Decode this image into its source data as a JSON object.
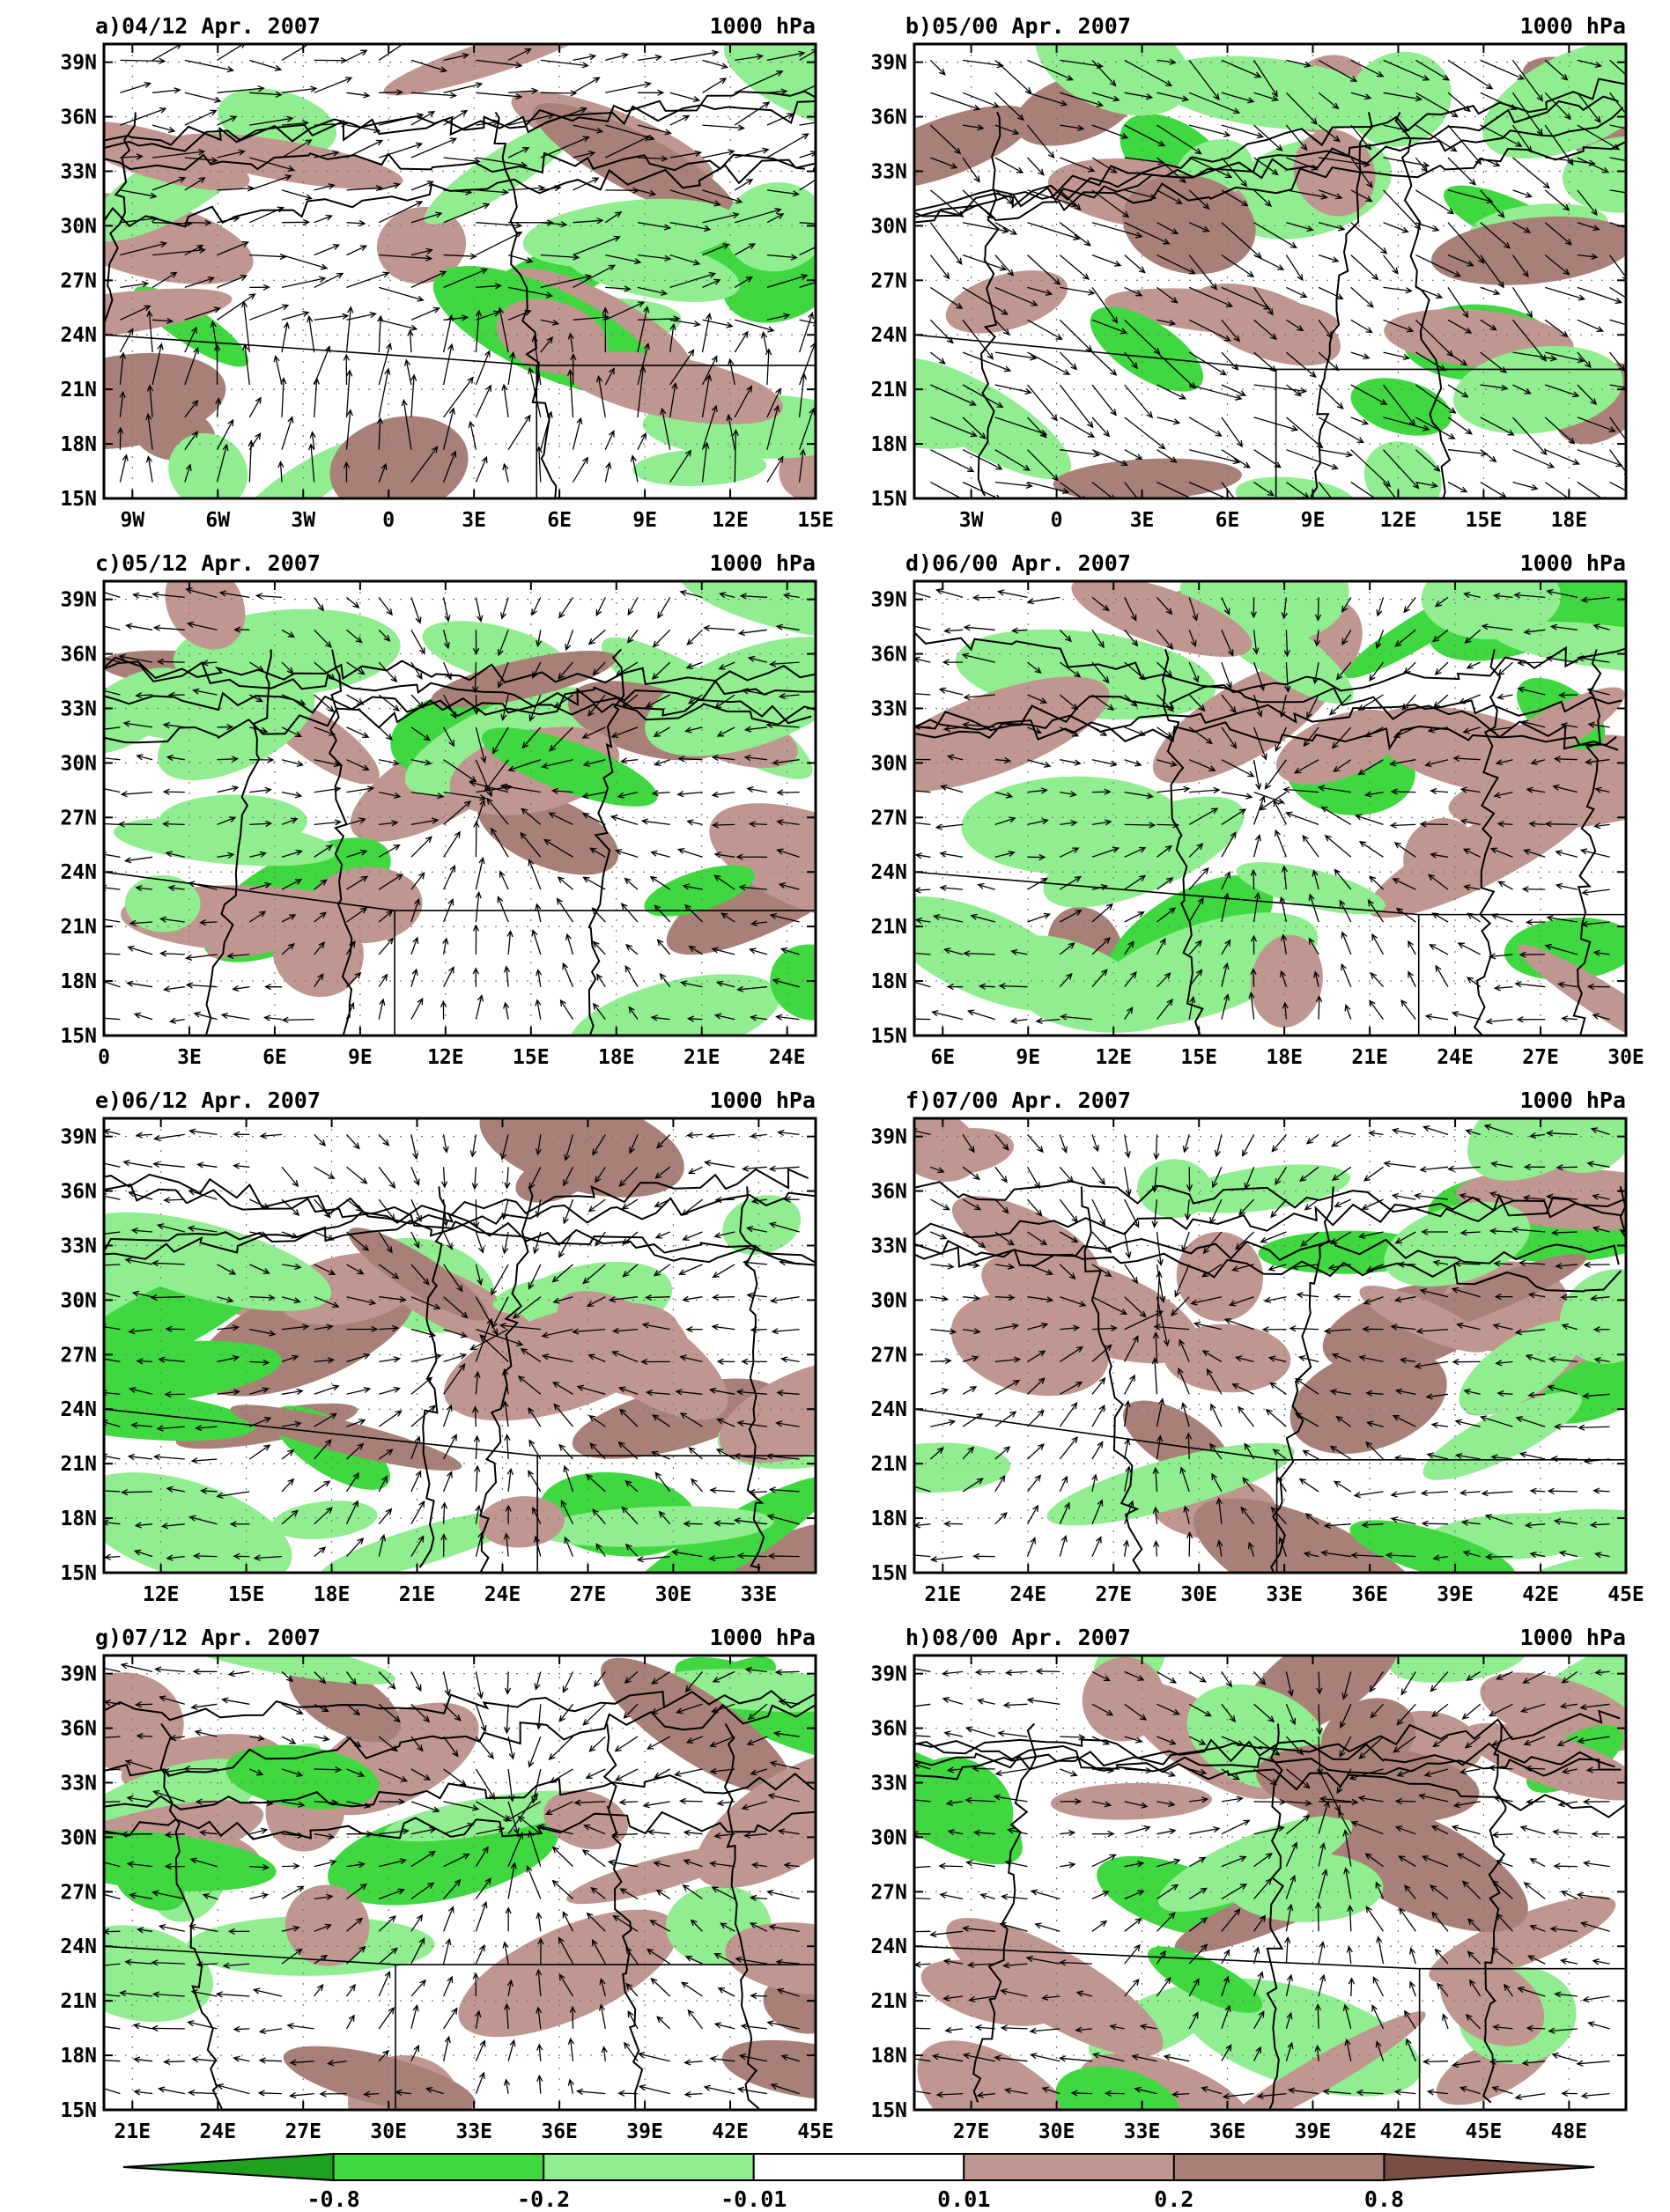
{
  "colors": {
    "ocean_frame": "#ffffff",
    "neg_strong": "#1fa01f",
    "neg_mid": "#40d840",
    "neg_weak": "#90ee90",
    "neutral": "#ffffff",
    "pos_weak": "#c09690",
    "pos_mid": "#a88078",
    "pos_strong": "#7a4e45",
    "arrow": "#000000"
  },
  "panels": [
    {
      "id": "a",
      "title": "a)04/12 Apr. 2007",
      "level": "1000 hPa",
      "lat_labels": [
        "39N",
        "36N",
        "33N",
        "30N",
        "27N",
        "24N",
        "21N",
        "18N",
        "15N"
      ],
      "lon_labels": [
        "9W",
        "6W",
        "3W",
        "0",
        "3E",
        "6E",
        "9E",
        "12E",
        "15E"
      ],
      "lon_range": [
        -10,
        15
      ],
      "wind_pattern": "southwesterly"
    },
    {
      "id": "b",
      "title": "b)05/00 Apr. 2007",
      "level": "1000 hPa",
      "lat_labels": [
        "39N",
        "36N",
        "33N",
        "30N",
        "27N",
        "24N",
        "21N",
        "18N",
        "15N"
      ],
      "lon_labels": [
        "3W",
        "0",
        "3E",
        "6E",
        "9E",
        "12E",
        "15E",
        "18E"
      ],
      "lon_range": [
        -5,
        20
      ],
      "wind_pattern": "northwesterly"
    },
    {
      "id": "c",
      "title": "c)05/12 Apr. 2007",
      "level": "1000 hPa",
      "lat_labels": [
        "39N",
        "36N",
        "33N",
        "30N",
        "27N",
        "24N",
        "21N",
        "18N",
        "15N"
      ],
      "lon_labels": [
        "0",
        "3E",
        "6E",
        "9E",
        "12E",
        "15E",
        "18E",
        "21E",
        "24E"
      ],
      "lon_range": [
        0,
        25
      ],
      "wind_pattern": "convergence",
      "center": [
        13.5,
        28.5
      ]
    },
    {
      "id": "d",
      "title": "d)06/00 Apr. 2007",
      "level": "1000 hPa",
      "lat_labels": [
        "39N",
        "36N",
        "33N",
        "30N",
        "27N",
        "24N",
        "21N",
        "18N",
        "15N"
      ],
      "lon_labels": [
        "6E",
        "9E",
        "12E",
        "15E",
        "18E",
        "21E",
        "24E",
        "27E",
        "30E"
      ],
      "lon_range": [
        5,
        30
      ],
      "wind_pattern": "convergence",
      "center": [
        17.5,
        28
      ]
    },
    {
      "id": "e",
      "title": "e)06/12 Apr. 2007",
      "level": "1000 hPa",
      "lat_labels": [
        "39N",
        "36N",
        "33N",
        "30N",
        "27N",
        "24N",
        "21N",
        "18N",
        "15N"
      ],
      "lon_labels": [
        "12E",
        "15E",
        "18E",
        "21E",
        "24E",
        "27E",
        "30E",
        "33E"
      ],
      "lon_range": [
        10,
        35
      ],
      "wind_pattern": "convergence",
      "center": [
        23.5,
        28
      ]
    },
    {
      "id": "f",
      "title": "f)07/00 Apr. 2007",
      "level": "1000 hPa",
      "lat_labels": [
        "39N",
        "36N",
        "33N",
        "30N",
        "27N",
        "24N",
        "21N",
        "18N",
        "15N"
      ],
      "lon_labels": [
        "21E",
        "24E",
        "27E",
        "30E",
        "33E",
        "36E",
        "39E",
        "42E",
        "45E"
      ],
      "lon_range": [
        20,
        45
      ],
      "wind_pattern": "convergence",
      "center": [
        28.5,
        29
      ]
    },
    {
      "id": "g",
      "title": "g)07/12 Apr. 2007",
      "level": "1000 hPa",
      "lat_labels": [
        "39N",
        "36N",
        "33N",
        "30N",
        "27N",
        "24N",
        "21N",
        "18N",
        "15N"
      ],
      "lon_labels": [
        "21E",
        "24E",
        "27E",
        "30E",
        "33E",
        "36E",
        "39E",
        "42E",
        "45E"
      ],
      "lon_range": [
        20,
        45
      ],
      "wind_pattern": "convergence",
      "center": [
        34.5,
        31
      ]
    },
    {
      "id": "h",
      "title": "h)08/00 Apr. 2007",
      "level": "1000 hPa",
      "lat_labels": [
        "39N",
        "36N",
        "33N",
        "30N",
        "27N",
        "24N",
        "21N",
        "18N",
        "15N"
      ],
      "lon_labels": [
        "27E",
        "30E",
        "33E",
        "36E",
        "39E",
        "42E",
        "45E",
        "48E"
      ],
      "lon_range": [
        25,
        50
      ],
      "wind_pattern": "convergence",
      "center": [
        39.5,
        32
      ]
    }
  ],
  "colorbar": {
    "labels": [
      "-0.8",
      "-0.2",
      "-0.01",
      "0.01",
      "0.2",
      "0.8"
    ]
  }
}
